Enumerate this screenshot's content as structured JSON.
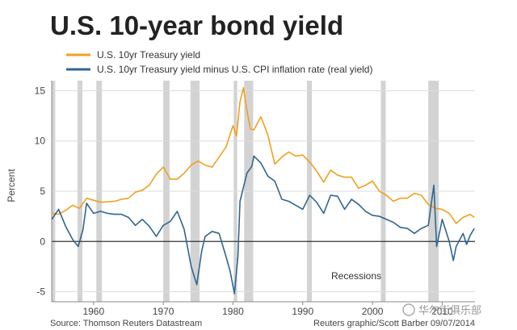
{
  "chart_data": {
    "type": "line",
    "title": "U.S. 10-year bond yield",
    "xlabel": "",
    "ylabel": "Percent",
    "xlim": [
      1954,
      2014.7
    ],
    "ylim": [
      -6,
      16
    ],
    "x_ticks": [
      1960,
      1970,
      1980,
      1990,
      2000,
      2010
    ],
    "y_ticks": [
      -5,
      0,
      5,
      10,
      15
    ],
    "grid": "horizontal",
    "legend_position": "top-left",
    "annotation": "Recessions",
    "source": "Source: Thomson Reuters Datastream",
    "credit": "Reuters graphic/Scott Barber 09/07/2014",
    "watermark": "华尔街俱乐部",
    "colors": {
      "nominal": "#f0a020",
      "real": "#2f6690",
      "recession": "#d3d3d3",
      "zero_line": "#333333",
      "grid": "#dddddd"
    },
    "recessions": [
      [
        1954.0,
        1954.5
      ],
      [
        1957.7,
        1958.4
      ],
      [
        1960.4,
        1961.2
      ],
      [
        1970.0,
        1970.9
      ],
      [
        1973.9,
        1975.2
      ],
      [
        1980.1,
        1980.6
      ],
      [
        1981.6,
        1982.9
      ],
      [
        1990.6,
        1991.3
      ],
      [
        2001.2,
        2001.9
      ],
      [
        2008.0,
        2009.5
      ]
    ],
    "series": [
      {
        "name": "U.S. 10yr Treasury yield",
        "color": "#f0a020",
        "x": [
          1954,
          1955,
          1956,
          1957,
          1958,
          1959,
          1960,
          1961,
          1962,
          1963,
          1964,
          1965,
          1966,
          1967,
          1968,
          1969,
          1970,
          1971,
          1972,
          1973,
          1974,
          1975,
          1976,
          1977,
          1978,
          1979,
          1980,
          1980.5,
          1981,
          1981.5,
          1982,
          1982.5,
          1983,
          1984,
          1985,
          1986,
          1987,
          1988,
          1989,
          1990,
          1991,
          1992,
          1993,
          1994,
          1995,
          1996,
          1997,
          1998,
          1999,
          2000,
          2001,
          2002,
          2003,
          2004,
          2005,
          2006,
          2007,
          2008,
          2009,
          2010,
          2011,
          2012,
          2013,
          2014,
          2014.6
        ],
        "y": [
          2.8,
          2.7,
          3.1,
          3.6,
          3.3,
          4.3,
          4.1,
          3.9,
          3.95,
          4.0,
          4.2,
          4.3,
          4.9,
          5.1,
          5.6,
          6.7,
          7.4,
          6.2,
          6.2,
          6.8,
          7.6,
          8.0,
          7.6,
          7.4,
          8.4,
          9.4,
          11.5,
          10.5,
          13.9,
          15.3,
          13.0,
          11.2,
          11.1,
          12.4,
          10.6,
          7.7,
          8.4,
          8.9,
          8.5,
          8.6,
          7.9,
          7.0,
          5.9,
          7.1,
          6.6,
          6.4,
          6.4,
          5.3,
          5.6,
          6.0,
          5.0,
          4.6,
          4.0,
          4.3,
          4.3,
          4.8,
          4.6,
          3.7,
          3.3,
          3.2,
          2.8,
          1.8,
          2.4,
          2.7,
          2.4
        ]
      },
      {
        "name": "U.S. 10yr Treasury yield minus U.S. CPI inflation rate (real yield)",
        "color": "#2f6690",
        "x": [
          1954,
          1955,
          1956,
          1957,
          1957.8,
          1958.5,
          1959,
          1960,
          1961,
          1962,
          1963,
          1964,
          1965,
          1966,
          1967,
          1968,
          1969,
          1970,
          1971,
          1972,
          1973,
          1974,
          1974.8,
          1975.5,
          1976,
          1977,
          1978,
          1979,
          1979.6,
          1980.2,
          1980.7,
          1981,
          1982,
          1982.7,
          1983,
          1984,
          1985,
          1986,
          1987,
          1988,
          1989,
          1990,
          1991,
          1992,
          1993,
          1994,
          1995,
          1996,
          1997,
          1998,
          1999,
          2000,
          2001,
          2002,
          2003,
          2004,
          2005,
          2006,
          2007,
          2008,
          2008.8,
          2009.2,
          2009.8,
          2010,
          2011,
          2011.6,
          2012,
          2013,
          2013.5,
          2014,
          2014.6
        ],
        "y": [
          2.2,
          3.2,
          1.5,
          0.2,
          -0.5,
          1.2,
          3.8,
          2.8,
          3.0,
          2.8,
          2.7,
          2.7,
          2.4,
          1.6,
          2.2,
          1.5,
          0.5,
          1.6,
          2.0,
          3.0,
          1.2,
          -2.5,
          -4.3,
          -1.0,
          0.5,
          1.0,
          0.8,
          -1.5,
          -3.0,
          -5.2,
          -1.5,
          4.0,
          6.8,
          7.5,
          8.5,
          7.8,
          6.5,
          6.0,
          4.2,
          4.0,
          3.6,
          3.2,
          4.6,
          3.9,
          2.8,
          4.6,
          4.5,
          3.2,
          4.2,
          3.7,
          3.0,
          2.6,
          2.5,
          2.2,
          1.9,
          1.4,
          1.3,
          0.8,
          1.3,
          1.6,
          5.6,
          -0.5,
          1.5,
          2.2,
          0.0,
          -1.9,
          -0.5,
          0.8,
          -0.3,
          0.6,
          1.3
        ]
      }
    ]
  }
}
